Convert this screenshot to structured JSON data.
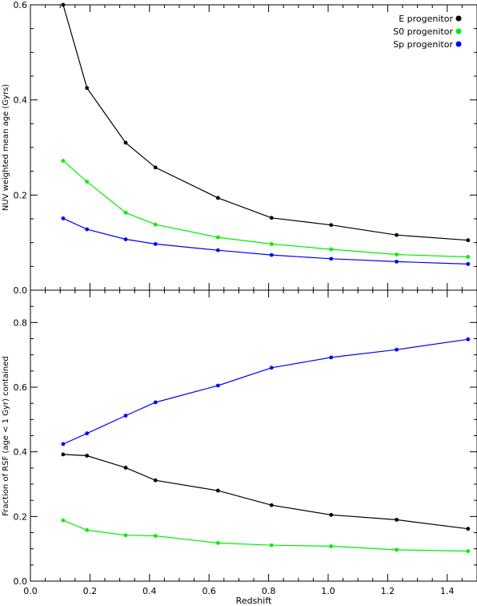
{
  "chart_data": [
    {
      "type": "line",
      "ylabel": "NUV weighted mean age (Gyrs)",
      "xlabel": "",
      "xlim": [
        0.0,
        1.5
      ],
      "ylim": [
        0.0,
        0.6
      ],
      "x": [
        0.11,
        0.19,
        0.32,
        0.42,
        0.63,
        0.81,
        1.01,
        1.23,
        1.47
      ],
      "xticks": [
        "",
        "",
        "",
        "",
        "",
        "",
        "",
        ""
      ],
      "yticks": [
        "0.0",
        "0.2",
        "0.4",
        "0.6"
      ],
      "legend": {
        "placement": "top-right"
      },
      "series": [
        {
          "name": "E progenitor",
          "color": "#000000",
          "values": [
            0.6,
            0.425,
            0.31,
            0.258,
            0.194,
            0.152,
            0.137,
            0.116,
            0.105
          ]
        },
        {
          "name": "S0 progenitor",
          "color": "#00ee00",
          "values": [
            0.272,
            0.228,
            0.163,
            0.138,
            0.111,
            0.097,
            0.086,
            0.075,
            0.07
          ]
        },
        {
          "name": "Sp progenitor",
          "color": "#0000ff",
          "values": [
            0.151,
            0.128,
            0.107,
            0.097,
            0.084,
            0.074,
            0.066,
            0.06,
            0.055
          ]
        }
      ]
    },
    {
      "type": "line",
      "ylabel": "Fraction of RSF (age < 1 Gyr) contained",
      "xlabel": "Redshift",
      "xlim": [
        0.0,
        1.5
      ],
      "ylim": [
        0.0,
        0.9
      ],
      "x": [
        0.11,
        0.19,
        0.32,
        0.42,
        0.63,
        0.81,
        1.01,
        1.23,
        1.47
      ],
      "xticks": [
        "0.0",
        "0.2",
        "0.4",
        "0.6",
        "0.8",
        "1.0",
        "1.2",
        "1.4"
      ],
      "yticks": [
        "0.0",
        "0.2",
        "0.4",
        "0.6",
        "0.8"
      ],
      "series": [
        {
          "name": "",
          "color": "#000000",
          "values": [
            0.392,
            0.388,
            0.351,
            0.312,
            0.28,
            0.235,
            0.205,
            0.19,
            0.162
          ]
        },
        {
          "name": "",
          "color": "#00ee00",
          "values": [
            0.188,
            0.158,
            0.142,
            0.14,
            0.118,
            0.111,
            0.108,
            0.097,
            0.093
          ]
        },
        {
          "name": "",
          "color": "#0000ff",
          "values": [
            0.424,
            0.457,
            0.512,
            0.553,
            0.605,
            0.66,
            0.692,
            0.716,
            0.748
          ]
        }
      ]
    }
  ]
}
